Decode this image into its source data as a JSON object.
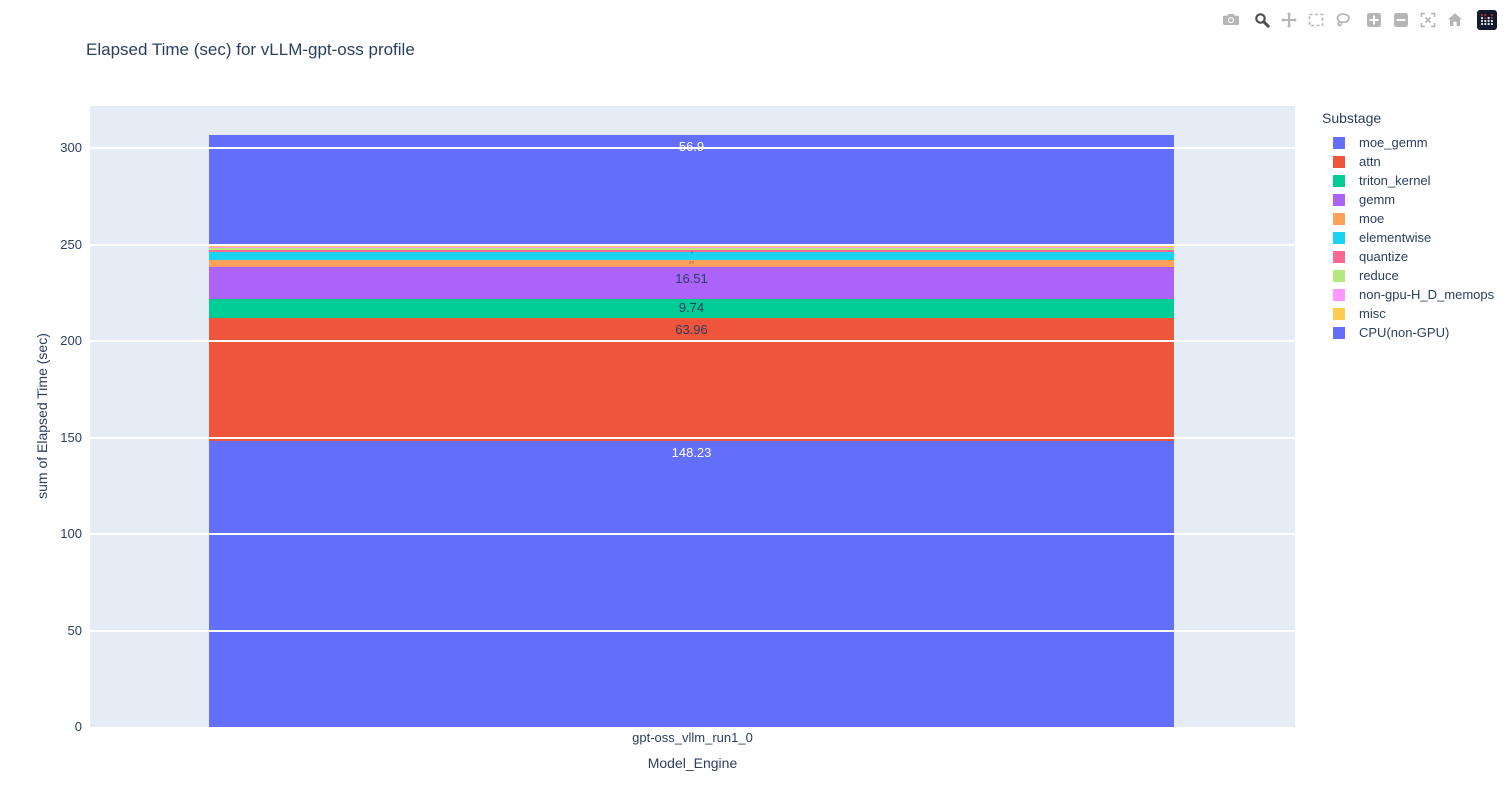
{
  "colors": {
    "text": "#2a3f5f",
    "plot_background": "#E5ECF6",
    "gridline": "#ffffff",
    "page_background": "#ffffff",
    "modebar_inactive": "#b5b5b5",
    "modebar_active": "#4f4f4f"
  },
  "modebar": {
    "active_button": "zoom",
    "buttons": [
      "download-plot-camera",
      "zoom",
      "pan",
      "box-select",
      "lasso-select",
      "zoom-in",
      "zoom-out",
      "autoscale",
      "reset-axes",
      "plotly-logo"
    ]
  },
  "chart_data": {
    "type": "bar",
    "stacked": true,
    "title": "Elapsed Time (sec) for vLLM-gpt-oss profile",
    "xlabel": "Model_Engine",
    "ylabel": "sum of Elapsed Time (sec)",
    "categories": [
      "gpt-oss_vllm_run1_0"
    ],
    "ylim": [
      0,
      322
    ],
    "yticks": [
      0,
      50,
      100,
      150,
      200,
      250,
      300
    ],
    "grid": "horizontal",
    "legend_position": "right",
    "legend_title": "Substage",
    "legend": [
      {
        "label": "moe_gemm",
        "color": "#636EFA"
      },
      {
        "label": "attn",
        "color": "#EF553B"
      },
      {
        "label": "triton_kernel",
        "color": "#00CC96"
      },
      {
        "label": "gemm",
        "color": "#AB63FA"
      },
      {
        "label": "moe",
        "color": "#FFA15A"
      },
      {
        "label": "elementwise",
        "color": "#19D3F3"
      },
      {
        "label": "quantize",
        "color": "#FF6692"
      },
      {
        "label": "reduce",
        "color": "#B6E880"
      },
      {
        "label": "non-gpu-H_D_memops",
        "color": "#FF97FF"
      },
      {
        "label": "misc",
        "color": "#FECB52"
      },
      {
        "label": "CPU(non-GPU)",
        "color": "#636EFA"
      }
    ],
    "segments_bottom_to_top": [
      {
        "name": "CPU(non-GPU)",
        "value": 148.23,
        "label": "148.23",
        "color": "#636EFA",
        "label_style": "white"
      },
      {
        "name": "attn",
        "value": 63.96,
        "label": "63.96",
        "color": "#EF553B",
        "label_style": "dark"
      },
      {
        "name": "triton_kernel",
        "value": 9.74,
        "label": "9.74",
        "color": "#00CC96",
        "label_style": "dark"
      },
      {
        "name": "gemm",
        "value": 16.51,
        "label": "16.51",
        "color": "#AB63FA",
        "label_style": "dark"
      },
      {
        "name": "moe",
        "value": 3.9,
        "label": "3.9",
        "color": "#FFA15A",
        "label_style": "micro",
        "estimated": true
      },
      {
        "name": "elementwise",
        "value": 3.9,
        "label": "",
        "color": "#19D3F3",
        "estimated": true
      },
      {
        "name": "quantize",
        "value": 1.0,
        "label": "1.0",
        "color": "#FF6692",
        "label_style": "micro-rot",
        "estimated": true
      },
      {
        "name": "reduce",
        "value": 0.9,
        "label": "",
        "color": "#B6E880",
        "estimated": true
      },
      {
        "name": "non-gpu-H_D_memops",
        "value": 0.7,
        "label": "",
        "color": "#FF97FF",
        "estimated": true
      },
      {
        "name": "misc",
        "value": 1.1,
        "label": "",
        "color": "#FECB52",
        "estimated": true
      },
      {
        "name": "moe_gemm",
        "value": 56.9,
        "label": "56.9",
        "color": "#636EFA",
        "label_style": "white"
      }
    ]
  }
}
